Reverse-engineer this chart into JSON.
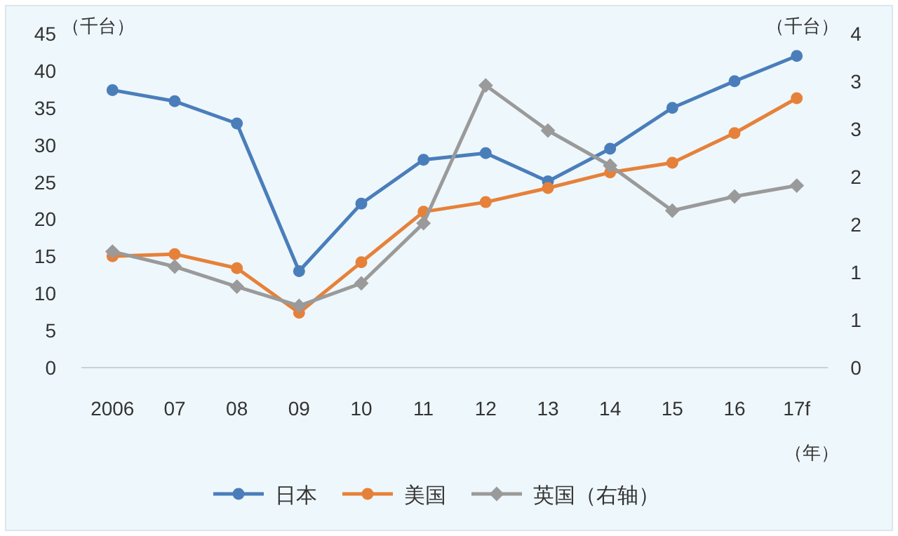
{
  "chart_data": {
    "type": "line",
    "categories": [
      "2006",
      "07",
      "08",
      "09",
      "10",
      "11",
      "12",
      "13",
      "14",
      "15",
      "16",
      "17f"
    ],
    "series": [
      {
        "name": "日本",
        "color": "#4a7ebb",
        "marker": "circle",
        "values": [
          37.4,
          35.9,
          32.9,
          13.0,
          22.1,
          28.0,
          28.9,
          25.1,
          29.5,
          35.0,
          38.6,
          42.0
        ]
      },
      {
        "name": "美国",
        "color": "#e6813a",
        "marker": "circle",
        "values": [
          15.0,
          15.3,
          13.4,
          7.4,
          14.2,
          21.0,
          22.3,
          24.2,
          26.3,
          27.6,
          31.6,
          36.3
        ]
      },
      {
        "name": "英国（右轴）",
        "color": "#9a9a9a",
        "marker": "diamond",
        "axis": "y2",
        "values": [
          1.39,
          1.21,
          0.97,
          0.74,
          1.01,
          1.73,
          3.38,
          2.84,
          2.42,
          1.88,
          2.05,
          2.18
        ]
      }
    ],
    "ylabel": "（千台）",
    "y2label": "（千台）",
    "xlabel": "（年）",
    "ylim": [
      0,
      45
    ],
    "yticks": [
      0,
      5,
      10,
      15,
      20,
      25,
      30,
      35,
      40,
      45
    ],
    "y2lim": [
      0,
      4
    ],
    "y2ticks": [
      0,
      {
        "value": 0.571,
        "label": "1"
      },
      {
        "value": 1.143,
        "label": "1"
      },
      {
        "value": 1.714,
        "label": "2"
      },
      {
        "value": 2.286,
        "label": "2"
      },
      {
        "value": 2.857,
        "label": "3"
      },
      {
        "value": 3.429,
        "label": "3"
      },
      4
    ],
    "grid": false,
    "legend": "bottom"
  }
}
